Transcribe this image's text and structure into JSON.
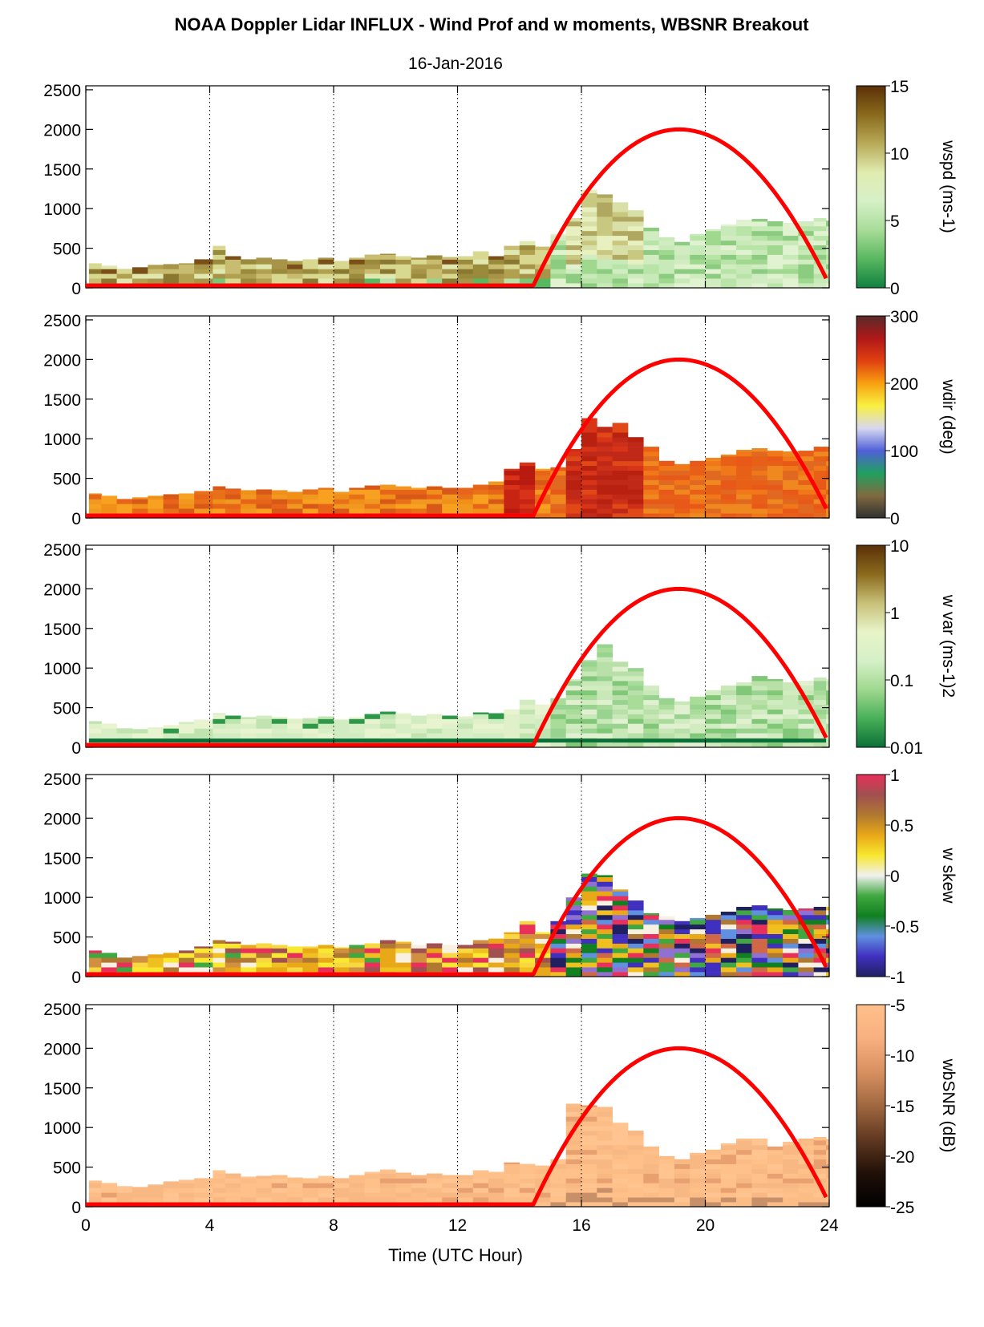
{
  "figure": {
    "title": "NOAA Doppler Lidar INFLUX - Wind Prof and w moments, WBSNR Breakout",
    "date": "16-Jan-2016",
    "xlabel": "Time (UTC Hour)"
  },
  "chart_data": {
    "type": "heatmap",
    "x_range": [
      0,
      24
    ],
    "x_ticks": [
      0,
      4,
      8,
      12,
      16,
      20,
      24
    ],
    "y_range": [
      0,
      2550
    ],
    "y_ticks": [
      0,
      500,
      1000,
      1500,
      2000,
      2500
    ],
    "vertical_gridlines": [
      4,
      8,
      12,
      16,
      20
    ],
    "overlay_curve": {
      "color": "#ff0000",
      "start_hour": 14.45,
      "peak_hour": 19.15,
      "peak_height": 2000,
      "end_hour": 23.9,
      "end_height": 120,
      "baseline_height": 30
    },
    "panels": [
      {
        "id": "wspd",
        "colorbar_label": "wspd (ms-1)",
        "colorbar_ticks": [
          "15",
          "10",
          "5",
          "0"
        ],
        "colorbar_colors": [
          "#5a3008",
          "#8a6a1c",
          "#b8aa58",
          "#e0ecb0",
          "#d6f0c8",
          "#a8dc98",
          "#58b860",
          "#108040"
        ],
        "data_extent": [
          [
            0.1,
            310
          ],
          [
            0.5,
            280
          ],
          [
            1.0,
            240
          ],
          [
            1.5,
            260
          ],
          [
            2.0,
            290
          ],
          [
            2.5,
            300
          ],
          [
            3.0,
            310
          ],
          [
            3.5,
            360
          ],
          [
            4.1,
            530
          ],
          [
            4.5,
            400
          ],
          [
            5.0,
            360
          ],
          [
            5.5,
            380
          ],
          [
            6.0,
            360
          ],
          [
            6.5,
            340
          ],
          [
            7.0,
            360
          ],
          [
            7.5,
            380
          ],
          [
            8.0,
            340
          ],
          [
            8.5,
            380
          ],
          [
            9.0,
            420
          ],
          [
            9.5,
            430
          ],
          [
            10.0,
            400
          ],
          [
            10.5,
            380
          ],
          [
            11.0,
            410
          ],
          [
            11.5,
            390
          ],
          [
            12.0,
            400
          ],
          [
            12.5,
            460
          ],
          [
            13.0,
            400
          ],
          [
            13.5,
            530
          ],
          [
            14.0,
            590
          ],
          [
            14.5,
            520
          ],
          [
            15.0,
            680
          ],
          [
            15.5,
            880
          ],
          [
            16.0,
            1240
          ],
          [
            16.5,
            1180
          ],
          [
            17.0,
            1080
          ],
          [
            17.5,
            980
          ],
          [
            18.0,
            760
          ],
          [
            18.5,
            640
          ],
          [
            19.0,
            580
          ],
          [
            19.5,
            680
          ],
          [
            20.0,
            740
          ],
          [
            20.5,
            800
          ],
          [
            21.0,
            860
          ],
          [
            21.5,
            870
          ],
          [
            22.0,
            840
          ],
          [
            22.5,
            820
          ],
          [
            23.0,
            840
          ],
          [
            23.5,
            880
          ],
          [
            23.9,
            850
          ]
        ]
      },
      {
        "id": "wdir",
        "colorbar_label": "wdir (deg)",
        "colorbar_ticks": [
          "300",
          "200",
          "100",
          "0"
        ],
        "colorbar_colors": [
          "#5a2a2a",
          "#b01818",
          "#e04010",
          "#f8a010",
          "#f8f040",
          "#d8d8f0",
          "#5060d8",
          "#20a060",
          "#806a40",
          "#303030"
        ],
        "data_extent": [
          [
            0.1,
            310
          ],
          [
            0.5,
            280
          ],
          [
            1.0,
            240
          ],
          [
            1.5,
            260
          ],
          [
            2.0,
            280
          ],
          [
            2.5,
            300
          ],
          [
            3.0,
            310
          ],
          [
            3.5,
            340
          ],
          [
            4.1,
            400
          ],
          [
            4.5,
            370
          ],
          [
            5.0,
            350
          ],
          [
            5.5,
            360
          ],
          [
            6.0,
            350
          ],
          [
            6.5,
            330
          ],
          [
            7.0,
            360
          ],
          [
            7.5,
            380
          ],
          [
            8.0,
            330
          ],
          [
            8.5,
            380
          ],
          [
            9.0,
            410
          ],
          [
            9.5,
            420
          ],
          [
            10.0,
            400
          ],
          [
            10.5,
            380
          ],
          [
            11.0,
            400
          ],
          [
            11.5,
            380
          ],
          [
            12.0,
            380
          ],
          [
            12.5,
            420
          ],
          [
            13.0,
            460
          ],
          [
            13.5,
            620
          ],
          [
            14.0,
            700
          ],
          [
            14.5,
            620
          ],
          [
            15.0,
            640
          ],
          [
            15.5,
            870
          ],
          [
            16.0,
            1260
          ],
          [
            16.5,
            1150
          ],
          [
            17.0,
            1200
          ],
          [
            17.5,
            1020
          ],
          [
            18.0,
            900
          ],
          [
            18.5,
            720
          ],
          [
            19.0,
            680
          ],
          [
            19.5,
            720
          ],
          [
            20.0,
            760
          ],
          [
            20.5,
            800
          ],
          [
            21.0,
            860
          ],
          [
            21.5,
            880
          ],
          [
            22.0,
            850
          ],
          [
            22.5,
            840
          ],
          [
            23.0,
            850
          ],
          [
            23.5,
            900
          ],
          [
            23.9,
            900
          ]
        ]
      },
      {
        "id": "wvar",
        "colorbar_label": "w var (ms-1)2",
        "colorbar_ticks": [
          "10",
          "1",
          "0.1",
          "0.01"
        ],
        "colorbar_colors": [
          "#5a3008",
          "#8a6a1c",
          "#c8c078",
          "#e8f4c8",
          "#d6f0c8",
          "#a0d890",
          "#48b058",
          "#0a7038"
        ],
        "data_extent": [
          [
            0.1,
            330
          ],
          [
            0.5,
            300
          ],
          [
            1.0,
            240
          ],
          [
            1.5,
            230
          ],
          [
            2.0,
            250
          ],
          [
            2.5,
            280
          ],
          [
            3.0,
            320
          ],
          [
            3.5,
            350
          ],
          [
            4.1,
            430
          ],
          [
            4.5,
            400
          ],
          [
            5.0,
            380
          ],
          [
            5.5,
            400
          ],
          [
            6.0,
            380
          ],
          [
            6.5,
            360
          ],
          [
            7.0,
            370
          ],
          [
            7.5,
            390
          ],
          [
            8.0,
            350
          ],
          [
            8.5,
            380
          ],
          [
            9.0,
            420
          ],
          [
            9.5,
            450
          ],
          [
            10.0,
            430
          ],
          [
            10.5,
            400
          ],
          [
            11.0,
            420
          ],
          [
            11.5,
            400
          ],
          [
            12.0,
            390
          ],
          [
            12.5,
            440
          ],
          [
            13.0,
            430
          ],
          [
            13.5,
            480
          ],
          [
            14.0,
            600
          ],
          [
            14.5,
            540
          ],
          [
            15.0,
            620
          ],
          [
            15.5,
            860
          ],
          [
            16.0,
            1100
          ],
          [
            16.5,
            1300
          ],
          [
            17.0,
            1080
          ],
          [
            17.5,
            1000
          ],
          [
            18.0,
            780
          ],
          [
            18.5,
            620
          ],
          [
            19.0,
            580
          ],
          [
            19.5,
            640
          ],
          [
            20.0,
            720
          ],
          [
            20.5,
            780
          ],
          [
            21.0,
            820
          ],
          [
            21.5,
            900
          ],
          [
            22.0,
            860
          ],
          [
            22.5,
            820
          ],
          [
            23.0,
            840
          ],
          [
            23.5,
            880
          ],
          [
            23.9,
            860
          ]
        ]
      },
      {
        "id": "wskew",
        "colorbar_label": "w skew",
        "colorbar_ticks": [
          "1",
          "0.5",
          "0",
          "-0.5",
          "-1"
        ],
        "colorbar_colors": [
          "#e8305a",
          "#a05050",
          "#b07830",
          "#e8a818",
          "#f8e830",
          "#f0f0f0",
          "#40a840",
          "#108020",
          "#6090e0",
          "#4030c0",
          "#202060"
        ],
        "data_extent": [
          [
            0.1,
            330
          ],
          [
            0.5,
            300
          ],
          [
            1.0,
            240
          ],
          [
            1.5,
            260
          ],
          [
            2.0,
            280
          ],
          [
            2.5,
            300
          ],
          [
            3.0,
            330
          ],
          [
            3.5,
            380
          ],
          [
            4.1,
            460
          ],
          [
            4.5,
            440
          ],
          [
            5.0,
            400
          ],
          [
            5.5,
            420
          ],
          [
            6.0,
            400
          ],
          [
            6.5,
            380
          ],
          [
            7.0,
            380
          ],
          [
            7.5,
            400
          ],
          [
            8.0,
            370
          ],
          [
            8.5,
            400
          ],
          [
            9.0,
            420
          ],
          [
            9.5,
            460
          ],
          [
            10.0,
            440
          ],
          [
            10.5,
            400
          ],
          [
            11.0,
            420
          ],
          [
            11.5,
            400
          ],
          [
            12.0,
            400
          ],
          [
            12.5,
            460
          ],
          [
            13.0,
            480
          ],
          [
            13.5,
            560
          ],
          [
            14.0,
            700
          ],
          [
            14.5,
            560
          ],
          [
            15.0,
            700
          ],
          [
            15.5,
            1000
          ],
          [
            16.0,
            1300
          ],
          [
            16.5,
            1280
          ],
          [
            17.0,
            1100
          ],
          [
            17.5,
            960
          ],
          [
            18.0,
            800
          ],
          [
            18.5,
            760
          ],
          [
            19.0,
            700
          ],
          [
            19.5,
            740
          ],
          [
            20.0,
            780
          ],
          [
            20.5,
            820
          ],
          [
            21.0,
            880
          ],
          [
            21.5,
            900
          ],
          [
            22.0,
            860
          ],
          [
            22.5,
            840
          ],
          [
            23.0,
            860
          ],
          [
            23.5,
            880
          ],
          [
            23.9,
            880
          ]
        ]
      },
      {
        "id": "wbsnr",
        "colorbar_label": "wbSNR (dB)",
        "colorbar_ticks": [
          "-5",
          "-10",
          "-15",
          "-20",
          "-25"
        ],
        "colorbar_colors": [
          "#ffc08a",
          "#f8b080",
          "#d89060",
          "#a06840",
          "#603820",
          "#201008",
          "#000000"
        ],
        "data_extent": [
          [
            0.1,
            330
          ],
          [
            0.5,
            300
          ],
          [
            1.0,
            260
          ],
          [
            1.5,
            250
          ],
          [
            2.0,
            280
          ],
          [
            2.5,
            320
          ],
          [
            3.0,
            340
          ],
          [
            3.5,
            360
          ],
          [
            4.1,
            460
          ],
          [
            4.5,
            420
          ],
          [
            5.0,
            380
          ],
          [
            5.5,
            390
          ],
          [
            6.0,
            400
          ],
          [
            6.5,
            370
          ],
          [
            7.0,
            360
          ],
          [
            7.5,
            390
          ],
          [
            8.0,
            360
          ],
          [
            8.5,
            400
          ],
          [
            9.0,
            440
          ],
          [
            9.5,
            470
          ],
          [
            10.0,
            430
          ],
          [
            10.5,
            400
          ],
          [
            11.0,
            420
          ],
          [
            11.5,
            400
          ],
          [
            12.0,
            400
          ],
          [
            12.5,
            460
          ],
          [
            13.0,
            440
          ],
          [
            13.5,
            560
          ],
          [
            14.0,
            540
          ],
          [
            14.5,
            520
          ],
          [
            15.0,
            600
          ],
          [
            15.5,
            1300
          ],
          [
            16.0,
            1280
          ],
          [
            16.5,
            1260
          ],
          [
            17.0,
            1060
          ],
          [
            17.5,
            960
          ],
          [
            18.0,
            760
          ],
          [
            18.5,
            640
          ],
          [
            19.0,
            600
          ],
          [
            19.5,
            680
          ],
          [
            20.0,
            720
          ],
          [
            20.5,
            800
          ],
          [
            21.0,
            860
          ],
          [
            21.5,
            860
          ],
          [
            22.0,
            760
          ],
          [
            22.5,
            820
          ],
          [
            23.0,
            860
          ],
          [
            23.5,
            880
          ],
          [
            23.9,
            850
          ]
        ]
      }
    ]
  }
}
